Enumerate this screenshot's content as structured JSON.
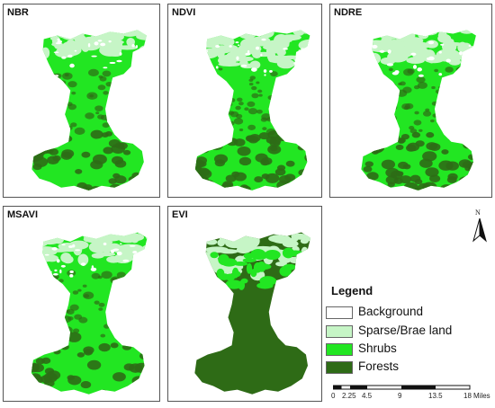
{
  "panels": [
    {
      "title": "NBR",
      "variant": "nbr"
    },
    {
      "title": "NDVI",
      "variant": "ndvi"
    },
    {
      "title": "NDRE",
      "variant": "ndre"
    },
    {
      "title": "MSAVI",
      "variant": "msavi"
    },
    {
      "title": "EVI",
      "variant": "evi"
    }
  ],
  "north_arrow": {
    "label": "N"
  },
  "legend": {
    "title": "Legend",
    "items": [
      {
        "label": "Background",
        "color": "#ffffff"
      },
      {
        "label": "Sparse/Brae land",
        "color": "#c6f5c6"
      },
      {
        "label": "Shrubs",
        "color": "#22e622"
      },
      {
        "label": "Forests",
        "color": "#2e6b16"
      }
    ]
  },
  "scale_bar": {
    "labels": [
      "0",
      "2.25",
      "4.5",
      "9",
      "13.5",
      "18"
    ],
    "unit": "Miles"
  }
}
